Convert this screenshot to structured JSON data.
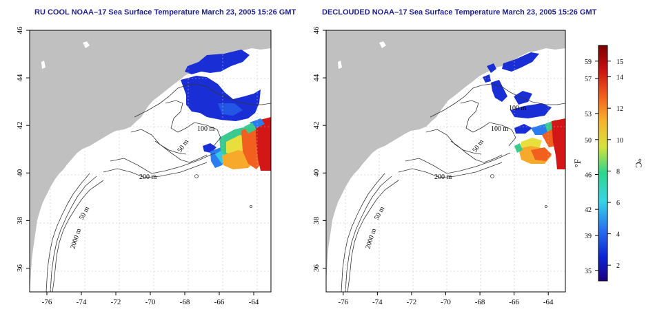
{
  "panels": [
    {
      "title": "RU COOL NOAA–17 Sea Surface Temperature March 23, 2005 15:26 GMT",
      "contours": [
        "100 m",
        "50 m",
        "200 m",
        "50 m",
        "2000 m"
      ]
    },
    {
      "title": "DECLOUDED NOAA–17 Sea Surface Temperature March 23, 2005 15:26 GMT",
      "contours": [
        "100 m",
        "100 m",
        "50 m",
        "200 m",
        "50 m",
        "2000 m"
      ]
    }
  ],
  "axes": {
    "x_ticks": [
      "-76",
      "-74",
      "-72",
      "-70",
      "-68",
      "-66",
      "-64"
    ],
    "y_ticks": [
      "46",
      "44",
      "42",
      "40",
      "38",
      "36"
    ],
    "lon_range": [
      -77.0,
      -63.0
    ],
    "lat_range": [
      35.0,
      46.0
    ],
    "grid": true
  },
  "colorbar": {
    "unit_f": "°F",
    "unit_c": "°C",
    "f_ticks": [
      "59",
      "57",
      "53",
      "50",
      "46",
      "42",
      "39",
      "35"
    ],
    "f_values": [
      59,
      57,
      53,
      50,
      46,
      42,
      39,
      35
    ],
    "c_ticks": [
      "15",
      "14",
      "12",
      "10",
      "8",
      "6",
      "4",
      "2"
    ],
    "c_values": [
      15,
      14,
      12,
      10,
      8,
      6,
      4,
      2
    ],
    "c_range": [
      1,
      16
    ],
    "colors": [
      "#1e007d",
      "#0a22d8",
      "#2a72f0",
      "#34d6e6",
      "#2ed58a",
      "#d7e23a",
      "#f7b22d",
      "#f25a1f",
      "#c80f0f",
      "#7d0000"
    ]
  },
  "colors": {
    "land": "#c0c0c0",
    "title": "#1e1e8c"
  }
}
